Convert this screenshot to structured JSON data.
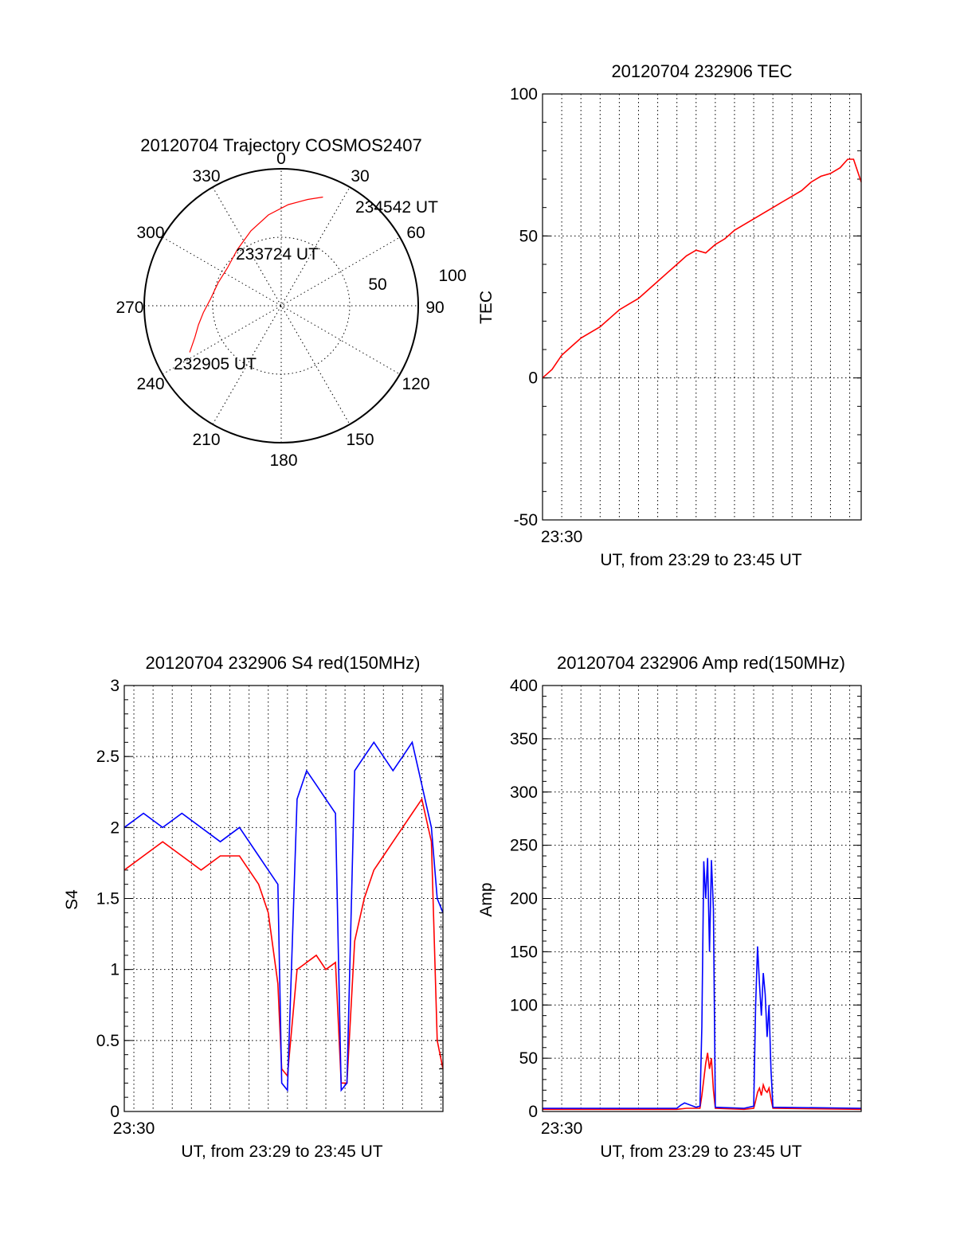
{
  "colors": {
    "red": "#ff0000",
    "blue": "#0000ff",
    "axis": "#000000"
  },
  "polar": {
    "title": "20120704 Trajectory COSMOS2407",
    "angle_labels": [
      "0",
      "30",
      "60",
      "90",
      "120",
      "150",
      "180",
      "210",
      "240",
      "270",
      "300",
      "330"
    ],
    "radius_labels": [
      "50",
      "100"
    ],
    "time_labels": [
      "234542 UT",
      "233724 UT",
      "232905 UT"
    ]
  },
  "chart_data": [
    {
      "id": "trajectory",
      "type": "scatter",
      "title": "20120704 Trajectory COSMOS2407",
      "coordinates": "polar",
      "angle_direction": "clockwise, 0 at top",
      "radius_range": [
        0,
        100
      ],
      "series": [
        {
          "color": "#ff0000",
          "points_az_r": [
            [
              243,
              75
            ],
            [
              250,
              67
            ],
            [
              257,
              62
            ],
            [
              265,
              57
            ],
            [
              275,
              52
            ],
            [
              290,
              49
            ],
            [
              305,
              48
            ],
            [
              322,
              52
            ],
            [
              338,
              59
            ],
            [
              352,
              67
            ],
            [
              4,
              74
            ],
            [
              14,
              80
            ],
            [
              21,
              85
            ]
          ]
        }
      ],
      "annotations": [
        {
          "text": "232905 UT",
          "az": 243,
          "r": 75
        },
        {
          "text": "233724 UT",
          "az": 305,
          "r": 48
        },
        {
          "text": "234542 UT",
          "az": 21,
          "r": 85
        }
      ]
    },
    {
      "id": "tec",
      "type": "line",
      "title": "20120704 232906 TEC",
      "xlabel": "UT, from 23:29 to 23:45 UT",
      "ylabel": "TEC",
      "xlim": [
        0,
        16.6
      ],
      "ylim": [
        -50,
        100
      ],
      "yticks": [
        -50,
        0,
        50,
        100
      ],
      "xtick_labels": [
        {
          "x": 1.0,
          "label": "23:30"
        }
      ],
      "grid": true,
      "series": [
        {
          "color": "#ff0000",
          "x": [
            0,
            0.5,
            1,
            1.5,
            2,
            2.5,
            3,
            3.5,
            4,
            4.5,
            5,
            5.5,
            6,
            6.5,
            7,
            7.5,
            8,
            8.5,
            9,
            9.5,
            10,
            10.5,
            11,
            11.5,
            12,
            12.5,
            13,
            13.5,
            14,
            14.5,
            15,
            15.5,
            15.9,
            16.2,
            16.6
          ],
          "y": [
            0,
            3,
            8,
            11,
            14,
            16,
            18,
            21,
            24,
            26,
            28,
            31,
            34,
            37,
            40,
            43,
            45,
            44,
            47,
            49,
            52,
            54,
            56,
            58,
            60,
            62,
            64,
            66,
            69,
            71,
            72,
            74,
            77,
            77,
            69
          ]
        }
      ]
    },
    {
      "id": "s4",
      "type": "line",
      "title": "20120704 232906 S4 red(150MHz)",
      "xlabel": "UT, from 23:29 to 23:45 UT",
      "ylabel": "S4",
      "xlim": [
        0,
        16.6
      ],
      "ylim": [
        0,
        3
      ],
      "yticks": [
        0,
        0.5,
        1,
        1.5,
        2,
        2.5,
        3
      ],
      "ytick_labels": [
        "0",
        "0.5",
        "1",
        "1.5",
        "2",
        "2.5",
        "3"
      ],
      "xtick_labels": [
        {
          "x": 0.5,
          "label": "23:30"
        }
      ],
      "grid": true,
      "series": [
        {
          "color": "#ff0000",
          "x": [
            0,
            1,
            2,
            3,
            4,
            5,
            6,
            7,
            7.5,
            8,
            8.2,
            8.5,
            9,
            9.5,
            10,
            10.5,
            11,
            11.3,
            11.6,
            12,
            12.5,
            13,
            13.5,
            14,
            14.5,
            15,
            15.5,
            16,
            16.3,
            16.6
          ],
          "y": [
            1.7,
            1.8,
            1.9,
            1.8,
            1.7,
            1.8,
            1.8,
            1.6,
            1.4,
            0.9,
            0.3,
            0.25,
            1.0,
            1.05,
            1.1,
            1.0,
            1.05,
            0.2,
            0.2,
            1.2,
            1.5,
            1.7,
            1.8,
            1.9,
            2.0,
            2.1,
            2.2,
            1.9,
            0.5,
            0.3
          ]
        },
        {
          "color": "#0000ff",
          "x": [
            0,
            1,
            2,
            3,
            4,
            5,
            6,
            7,
            7.5,
            8,
            8.2,
            8.5,
            9,
            9.5,
            10,
            10.5,
            11,
            11.3,
            11.6,
            12,
            12.5,
            13,
            13.5,
            14,
            14.5,
            15,
            15.5,
            16,
            16.3,
            16.6
          ],
          "y": [
            2.0,
            2.1,
            2.0,
            2.1,
            2.0,
            1.9,
            2.0,
            1.8,
            1.7,
            1.6,
            0.2,
            0.15,
            2.2,
            2.4,
            2.3,
            2.2,
            2.1,
            0.15,
            0.2,
            2.4,
            2.5,
            2.6,
            2.5,
            2.4,
            2.5,
            2.6,
            2.3,
            2.0,
            1.5,
            1.4
          ]
        }
      ]
    },
    {
      "id": "amp",
      "type": "line",
      "title": "20120704 232906 Amp red(150MHz)",
      "xlabel": "UT, from 23:29 to 23:45 UT",
      "ylabel": "Amp",
      "xlim": [
        0,
        16.6
      ],
      "ylim": [
        0,
        400
      ],
      "yticks": [
        0,
        50,
        100,
        150,
        200,
        250,
        300,
        350,
        400
      ],
      "xtick_labels": [
        {
          "x": 1.0,
          "label": "23:30"
        }
      ],
      "grid": true,
      "series": [
        {
          "color": "#ff0000",
          "x": [
            0,
            7.0,
            7.5,
            8.0,
            8.2,
            8.3,
            8.4,
            8.5,
            8.6,
            8.7,
            8.8,
            8.9,
            9.0,
            10.5,
            11.0,
            11.1,
            11.2,
            11.3,
            11.4,
            11.5,
            11.6,
            11.7,
            11.8,
            11.9,
            12.0,
            16.6
          ],
          "y": [
            2,
            2,
            3,
            3,
            3,
            15,
            30,
            45,
            55,
            40,
            50,
            20,
            3,
            2,
            3,
            10,
            18,
            22,
            15,
            25,
            20,
            18,
            22,
            12,
            3,
            2
          ]
        },
        {
          "color": "#0000ff",
          "x": [
            0,
            7.0,
            7.2,
            7.4,
            8.0,
            8.2,
            8.3,
            8.4,
            8.5,
            8.6,
            8.7,
            8.8,
            8.9,
            9.0,
            10.5,
            11.0,
            11.1,
            11.2,
            11.3,
            11.4,
            11.5,
            11.6,
            11.7,
            11.8,
            11.9,
            12.0,
            16.6
          ],
          "y": [
            3,
            3,
            6,
            8,
            4,
            5,
            80,
            235,
            200,
            238,
            150,
            236,
            190,
            4,
            3,
            5,
            100,
            155,
            120,
            90,
            130,
            110,
            70,
            100,
            40,
            4,
            3
          ]
        }
      ]
    }
  ]
}
